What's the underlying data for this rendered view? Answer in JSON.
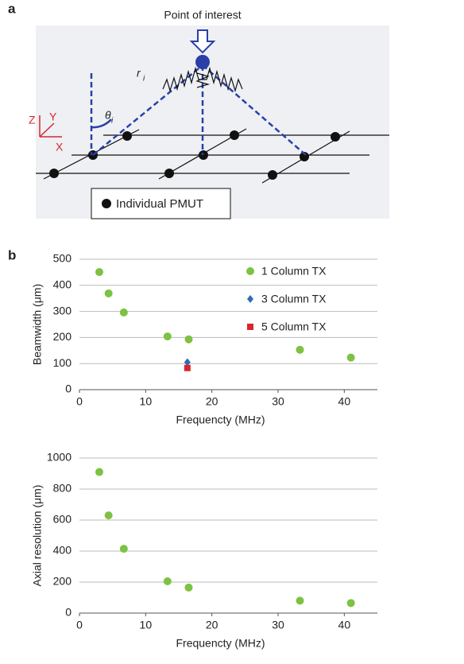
{
  "panel_labels": [
    "a",
    "b"
  ],
  "diagram": {
    "annotation": "Point of interest",
    "r_label": "r",
    "r_sub": "i",
    "theta_label": "θ",
    "theta_sub": "i",
    "axes": [
      "Z",
      "Y",
      "X"
    ],
    "legend": "Individual PMUT"
  },
  "chart_data": [
    {
      "type": "scatter",
      "ylabel": "Beamwidth (μm)",
      "xlabel": "Frequencty (MHz)",
      "xlim": [
        0,
        45
      ],
      "xticks": [
        0,
        10,
        20,
        30,
        40
      ],
      "ylim": [
        0,
        500
      ],
      "yticks": [
        0,
        100,
        200,
        300,
        400,
        500
      ],
      "grid": true,
      "legend": "upper right",
      "series": [
        {
          "name": "1 Column TX",
          "color": "#7dc242",
          "marker": "circle",
          "x": [
            3,
            4.4,
            6.7,
            13.3,
            16.5,
            33.3,
            41
          ],
          "values": [
            451,
            369,
            296,
            204,
            193,
            153,
            123
          ]
        },
        {
          "name": "3 Column TX",
          "color": "#2e6db4",
          "marker": "diamond",
          "x": [
            16.3
          ],
          "values": [
            105
          ]
        },
        {
          "name": "5 Column TX",
          "color": "#d9262e",
          "marker": "square",
          "x": [
            16.3
          ],
          "values": [
            83
          ]
        }
      ]
    },
    {
      "type": "scatter",
      "ylabel": "Axial resolution (μm)",
      "xlabel": "Frequencty (MHz)",
      "xlim": [
        0,
        45
      ],
      "xticks": [
        0,
        10,
        20,
        30,
        40
      ],
      "ylim": [
        0,
        1000
      ],
      "yticks": [
        0,
        200,
        400,
        600,
        800,
        1000
      ],
      "grid": true,
      "series": [
        {
          "color": "#7dc242",
          "marker": "circle",
          "x": [
            3,
            4.4,
            6.7,
            13.3,
            16.5,
            33.3,
            41
          ],
          "values": [
            910,
            630,
            415,
            205,
            165,
            80,
            65
          ]
        }
      ]
    }
  ]
}
